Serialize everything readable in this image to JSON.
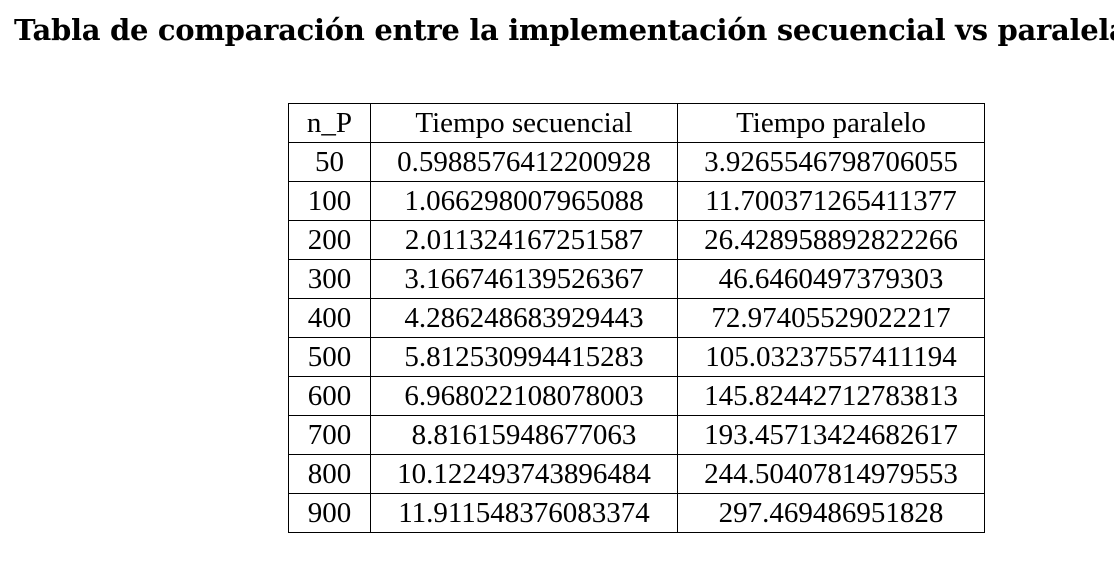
{
  "document": {
    "title": "Tabla de comparación entre la implementación secuencial vs paralela"
  },
  "table": {
    "headers": [
      "n_P",
      "Tiempo secuencial",
      "Tiempo paralelo"
    ],
    "rows": [
      [
        "50",
        "0.5988576412200928",
        "3.9265546798706055"
      ],
      [
        "100",
        "1.066298007965088",
        "11.700371265411377"
      ],
      [
        "200",
        "2.011324167251587",
        "26.428958892822266"
      ],
      [
        "300",
        "3.166746139526367",
        "46.6460497379303"
      ],
      [
        "400",
        "4.286248683929443",
        "72.97405529022217"
      ],
      [
        "500",
        "5.812530994415283",
        "105.03237557411194"
      ],
      [
        "600",
        "6.968022108078003",
        "145.82442712783813"
      ],
      [
        "700",
        "8.81615948677063",
        "193.45713424682617"
      ],
      [
        "800",
        "10.122493743896484",
        "244.50407814979553"
      ],
      [
        "900",
        "11.911548376083374",
        "297.469486951828"
      ]
    ]
  }
}
